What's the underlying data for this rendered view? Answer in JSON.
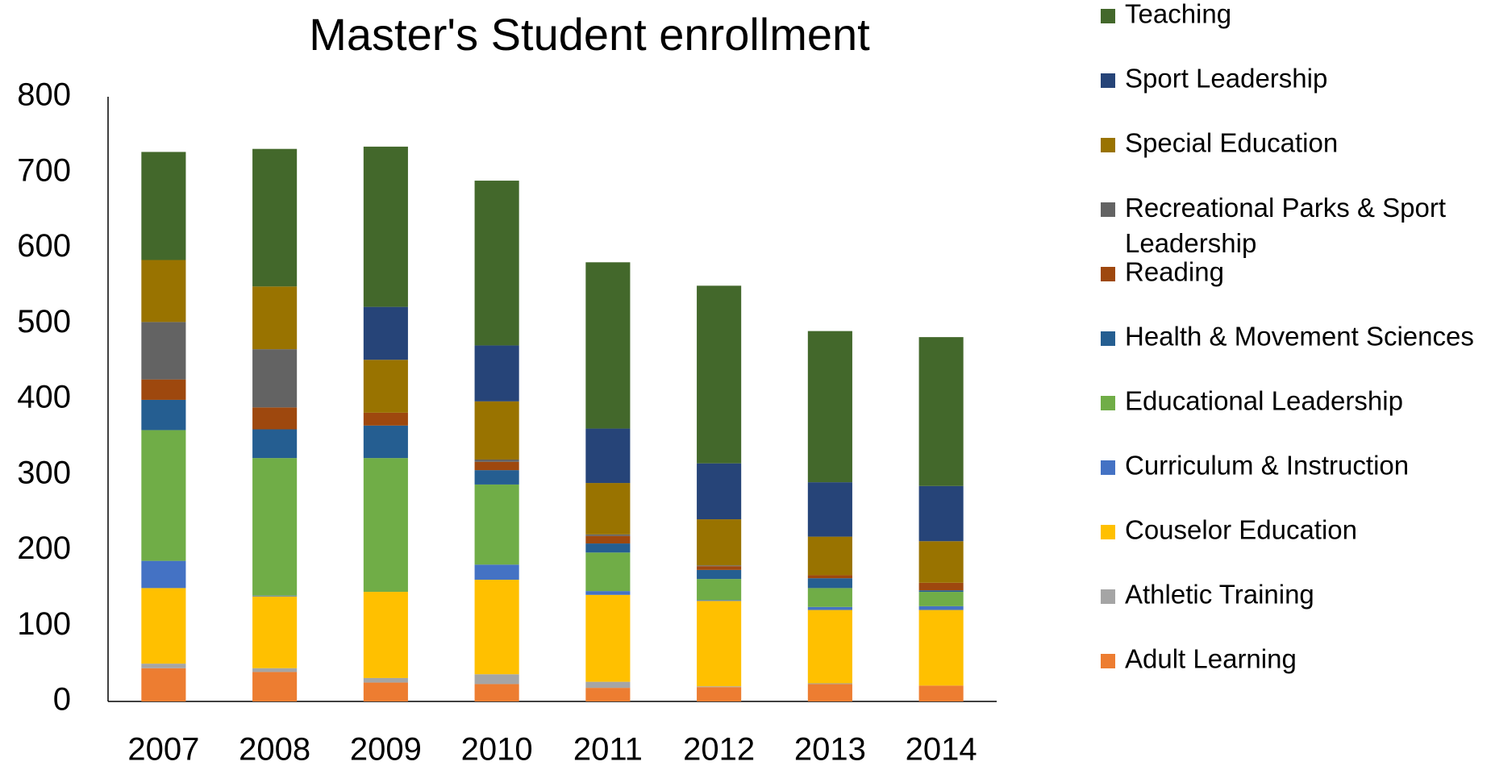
{
  "chart_data": {
    "type": "stacked_bar",
    "title": "Master's Student enrollment",
    "categories": [
      "2007",
      "2008",
      "2009",
      "2010",
      "2011",
      "2012",
      "2013",
      "2014"
    ],
    "ylim": [
      0,
      800
    ],
    "yticks": [
      0,
      100,
      200,
      300,
      400,
      500,
      600,
      700,
      800
    ],
    "grid": false,
    "legend": "right",
    "series": [
      {
        "name": "Adult Learning",
        "color": "#ed7d31",
        "values": [
          44,
          39,
          25,
          23,
          18,
          19,
          23,
          21
        ]
      },
      {
        "name": "Athletic Training",
        "color": "#a5a5a5",
        "values": [
          6,
          5,
          6,
          13,
          8,
          1,
          1,
          0
        ]
      },
      {
        "name": "Couselor Education",
        "color": "#ffc000",
        "values": [
          100,
          95,
          114,
          125,
          115,
          113,
          97,
          100
        ]
      },
      {
        "name": "Curriculum & Instruction",
        "color": "#4472c4",
        "values": [
          36,
          1,
          0,
          20,
          5,
          1,
          4,
          5
        ]
      },
      {
        "name": "Educational Leadership",
        "color": "#70ad47",
        "values": [
          173,
          182,
          177,
          106,
          51,
          28,
          25,
          19
        ]
      },
      {
        "name": "Health & Movement Sciences",
        "color": "#255e91",
        "values": [
          40,
          38,
          43,
          19,
          12,
          12,
          13,
          2
        ]
      },
      {
        "name": "Reading",
        "color": "#9e480e",
        "values": [
          27,
          29,
          17,
          11,
          10,
          5,
          4,
          10
        ]
      },
      {
        "name": "Recreational Parks & Sport Leadership",
        "color": "#636363",
        "values": [
          76,
          77,
          0,
          3,
          2,
          1,
          0,
          0
        ]
      },
      {
        "name": "Special Education",
        "color": "#997300",
        "values": [
          82,
          83,
          70,
          77,
          68,
          61,
          51,
          55
        ]
      },
      {
        "name": "Sport Leadership",
        "color": "#264478",
        "values": [
          0,
          0,
          70,
          74,
          72,
          74,
          72,
          73
        ]
      },
      {
        "name": "Teaching",
        "color": "#43682b",
        "values": [
          143,
          182,
          212,
          218,
          220,
          235,
          200,
          197
        ]
      }
    ]
  }
}
